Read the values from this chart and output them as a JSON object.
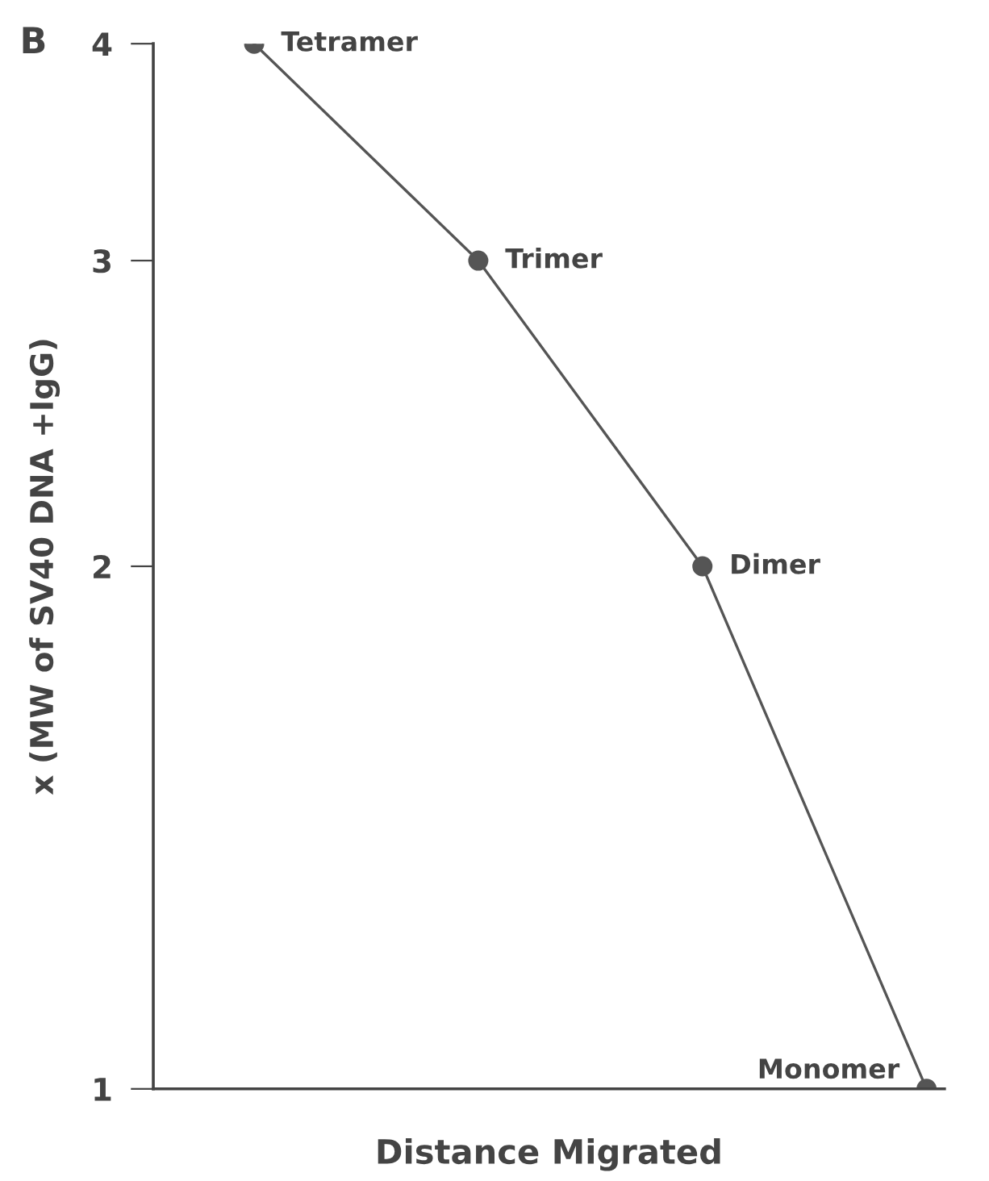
{
  "chart_data": {
    "type": "line",
    "xlabel": "Distance Migrated",
    "ylabel": "x (MW of SV40 DNA +IgG)",
    "categories": [
      null,
      null,
      null,
      null
    ],
    "series": [
      {
        "color": "#555555",
        "values": [
          4,
          3,
          2,
          1
        ]
      }
    ],
    "log": "y",
    "ylim": [
      1,
      4
    ],
    "yticks": [
      1,
      2,
      3,
      4
    ],
    "tick_labels": "y",
    "marker": "circle",
    "line_style": "solid",
    "annotations": [
      "B",
      "Tetramer",
      "Trimer",
      "Dimer",
      "Monomer"
    ]
  }
}
